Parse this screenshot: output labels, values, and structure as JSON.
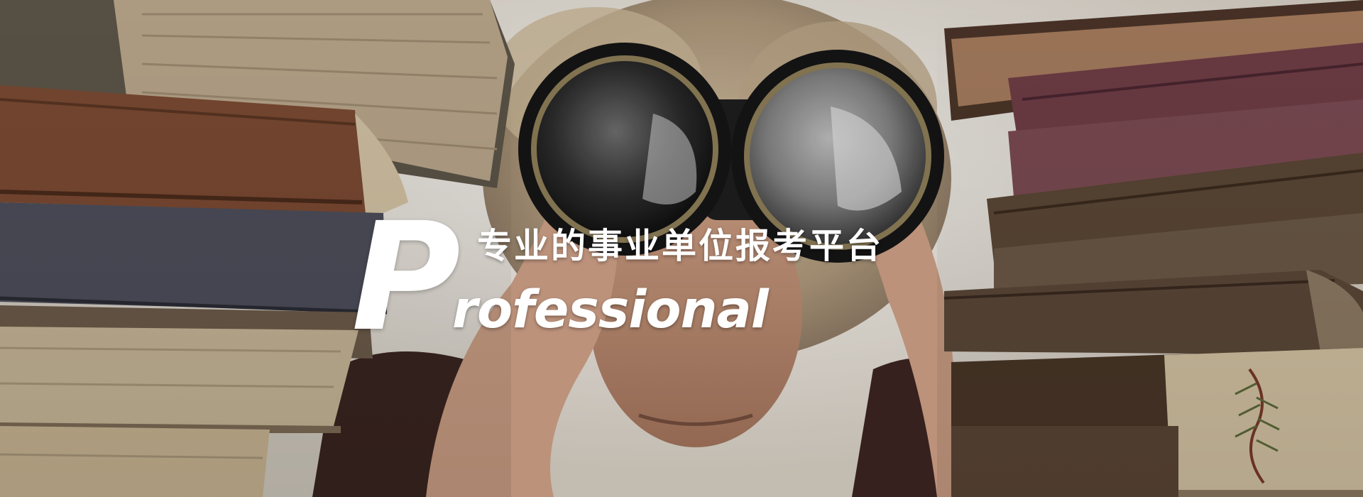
{
  "banner": {
    "initial": "P",
    "title_cn": "专业的事业单位报考平台",
    "title_en_rest": "rofessional"
  },
  "photo": {
    "subject": "person-looking-through-binoculars-between-book-stacks",
    "icon": "binoculars-icon"
  }
}
